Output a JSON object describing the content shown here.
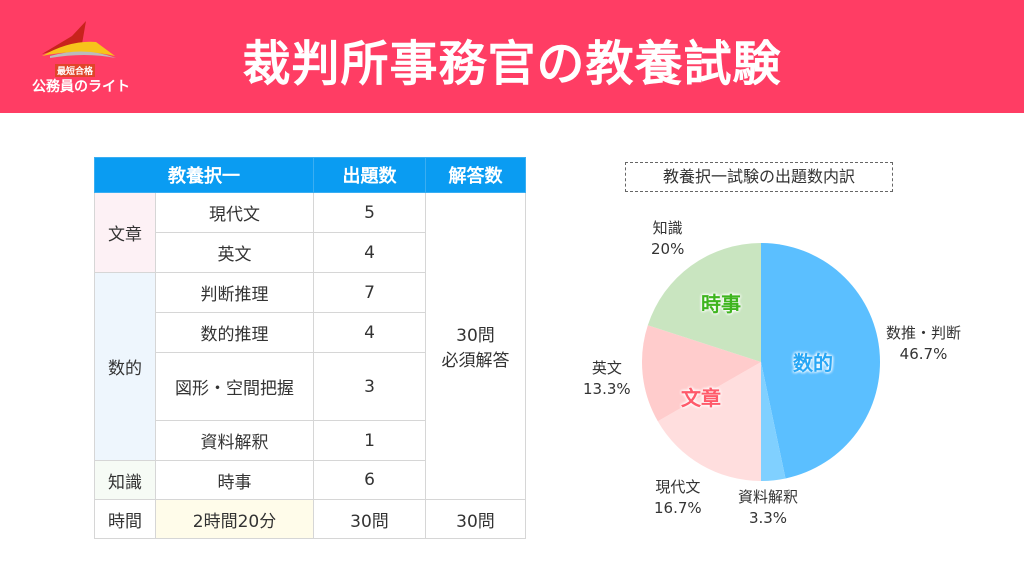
{
  "header": {
    "title": "裁判所事務官の教養試験",
    "logo": {
      "badge": "最短合格",
      "name": "公務員のライト"
    },
    "bg_color": "#ff3d64"
  },
  "table": {
    "headers": [
      "教養択一",
      "出題数",
      "解答数"
    ],
    "groups": [
      {
        "category": "文章",
        "rows": [
          {
            "subject": "現代文",
            "count": "5"
          },
          {
            "subject": "英文",
            "count": "4"
          }
        ]
      },
      {
        "category": "数的",
        "rows": [
          {
            "subject": "判断推理",
            "count": "7"
          },
          {
            "subject": "数的推理",
            "count": "4"
          },
          {
            "subject": "図形・空間把握",
            "count": "3"
          },
          {
            "subject": "資料解釈",
            "count": "1"
          }
        ]
      },
      {
        "category": "知識",
        "rows": [
          {
            "subject": "時事",
            "count": "6"
          }
        ]
      }
    ],
    "answer_note_1": "30問",
    "answer_note_2": "必須解答",
    "time_row": {
      "label": "時間",
      "duration": "2時間20分",
      "questions": "30問",
      "answers": "30問"
    }
  },
  "chart_data": {
    "type": "pie",
    "title": "教養択一試験の出題数内訳",
    "slices": [
      {
        "label": "数推・判断",
        "value": 46.7,
        "display": "46.7%",
        "color": "#5bbfff"
      },
      {
        "label": "資料解釈",
        "value": 3.3,
        "display": "3.3%",
        "color": "#80d0ff"
      },
      {
        "label": "現代文",
        "value": 16.7,
        "display": "16.7%",
        "color": "#ffdede"
      },
      {
        "label": "英文",
        "value": 13.3,
        "display": "13.3%",
        "color": "#ffcccc"
      },
      {
        "label": "知識",
        "value": 20,
        "display": "20%",
        "color": "#c9e5c0"
      }
    ],
    "group_labels": [
      {
        "label": "数的",
        "color": "#27a6f5"
      },
      {
        "label": "文章",
        "color": "#ff5a6a"
      },
      {
        "label": "時事",
        "color": "#3eb51e"
      }
    ],
    "start": "top",
    "direction": "clockwise"
  }
}
